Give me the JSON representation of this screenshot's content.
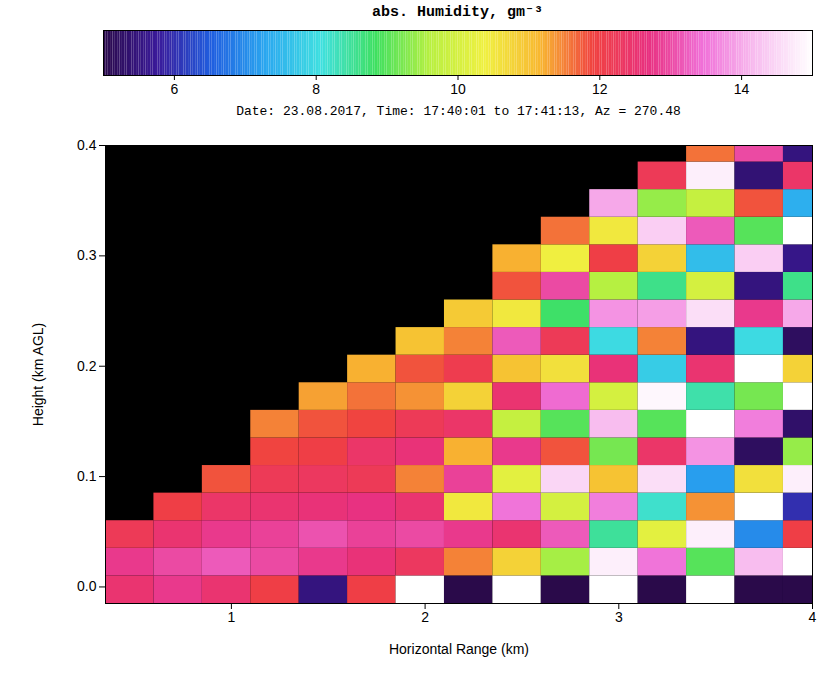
{
  "chart_data": {
    "type": "heatmap",
    "title": "Date: 23.08.2017, Time: 17:40:01 to 17:41:13, Az = 270.48",
    "x_label": "Horizontal Range (km)",
    "y_label": "Height (km AGL)",
    "xlim": [
      0.35,
      4.0
    ],
    "ylim": [
      -0.015,
      0.4
    ],
    "xticks": [
      1,
      2,
      3,
      4
    ],
    "yticks": [
      {
        "value": 0,
        "label": "0.0"
      },
      0.1,
      0.2,
      0.3,
      0.4
    ],
    "cells": {
      "x": [
        0.475,
        0.725,
        0.975,
        1.225,
        1.475,
        1.725,
        1.975,
        2.225,
        2.475,
        2.725,
        2.975,
        3.225,
        3.475,
        3.725,
        3.975
      ],
      "y": [
        -0.0025,
        0.0225,
        0.0475,
        0.0725,
        0.0975,
        0.1225,
        0.1475,
        0.1725,
        0.1975,
        0.2225,
        0.2475,
        0.2725,
        0.2975,
        0.3225,
        0.3475,
        0.3725,
        0.3975
      ],
      "width": 0.25,
      "height": 0.025,
      "values": [
        [
          12.5,
          12.8,
          12.2,
          null,
          null,
          null,
          null,
          null,
          null,
          null,
          null,
          null,
          null,
          null,
          null,
          null,
          null
        ],
        [
          12.8,
          13.0,
          12.5,
          12.0,
          null,
          null,
          null,
          null,
          null,
          null,
          null,
          null,
          null,
          null,
          null,
          null,
          null
        ],
        [
          12.5,
          13.2,
          12.8,
          12.4,
          11.8,
          null,
          null,
          null,
          null,
          null,
          null,
          null,
          null,
          null,
          null,
          null,
          null
        ],
        [
          12.0,
          13.0,
          12.9,
          12.5,
          12.2,
          11.9,
          11.5,
          null,
          null,
          null,
          null,
          null,
          null,
          null,
          null,
          null,
          null
        ],
        [
          5.5,
          12.8,
          13.1,
          12.6,
          12.3,
          12.0,
          11.8,
          11.3,
          null,
          null,
          null,
          null,
          null,
          null,
          null,
          null,
          null
        ],
        [
          12.0,
          12.6,
          12.9,
          12.7,
          12.2,
          12.4,
          11.9,
          11.6,
          11.2,
          null,
          null,
          null,
          null,
          null,
          null,
          null,
          null
        ],
        [
          15.0,
          12.3,
          13.0,
          12.5,
          11.5,
          12.6,
          12.2,
          11.4,
          11.8,
          11.0,
          null,
          null,
          null,
          null,
          null,
          null,
          null
        ],
        [
          5.0,
          11.5,
          12.8,
          10.5,
          12.9,
          11.2,
          12.4,
          10.8,
          12.1,
          11.5,
          10.9,
          null,
          null,
          null,
          null,
          null,
          null
        ],
        [
          15.0,
          10.8,
          12.5,
          13.5,
          10.2,
          12.8,
          9.8,
          12.5,
          11.0,
          13.2,
          10.5,
          11.8,
          11.2,
          null,
          null,
          null,
          null
        ],
        [
          5.0,
          9.5,
          13.2,
          10.0,
          14.5,
          11.8,
          9.0,
          13.4,
          10.6,
          12.2,
          8.8,
          13.0,
          10.4,
          11.6,
          null,
          null,
          null
        ],
        [
          15.0,
          14.8,
          8.5,
          13.6,
          11.0,
          9.2,
          14.2,
          10.0,
          12.6,
          8.0,
          13.8,
          9.6,
          12.0,
          10.5,
          14.0,
          null,
          null
        ],
        [
          5.0,
          13.5,
          10.2,
          8.2,
          14.6,
          12.4,
          9.0,
          14.9,
          7.8,
          11.5,
          13.9,
          8.6,
          10.8,
          14.4,
          9.4,
          12.2,
          null
        ],
        [
          15.0,
          9.0,
          14.8,
          11.4,
          7.2,
          13.8,
          15.0,
          8.4,
          12.5,
          5.5,
          14.6,
          10.0,
          7.6,
          13.2,
          9.8,
          14.8,
          11.6
        ],
        [
          5.0,
          14.2,
          7.0,
          15.0,
          10.6,
          5.2,
          13.6,
          9.2,
          15.0,
          8.0,
          12.8,
          5.5,
          14.4,
          9.0,
          11.8,
          5.4,
          13.0
        ],
        [
          5.0,
          15.0,
          12.0,
          6.0,
          14.8,
          9.4,
          5.3,
          15.0,
          10.8,
          5.2,
          14.0,
          8.6,
          5.6,
          15.0,
          7.4,
          12.4,
          5.5
        ]
      ]
    },
    "colorbar": {
      "label": "abs. Humidity, gm⁻³",
      "range": [
        5,
        15
      ],
      "ticks": [
        6,
        8,
        10,
        12,
        14
      ]
    }
  }
}
